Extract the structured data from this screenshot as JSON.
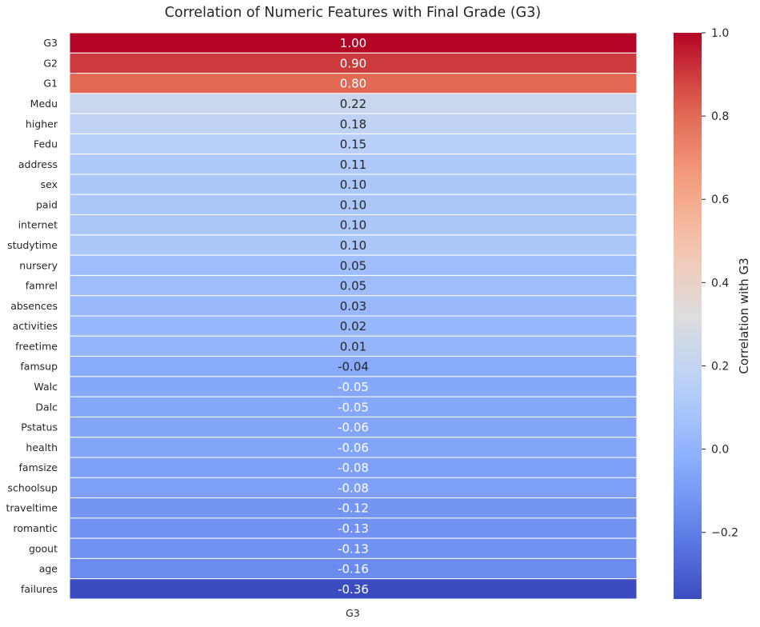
{
  "title": "Correlation of Numeric Features with Final Grade (G3)",
  "chart_data": {
    "type": "heatmap",
    "title": "Correlation of Numeric Features with Final Grade (G3)",
    "columns": [
      "G3"
    ],
    "rows": [
      "G3",
      "G2",
      "G1",
      "Medu",
      "higher",
      "Fedu",
      "address",
      "sex",
      "paid",
      "internet",
      "studytime",
      "nursery",
      "famrel",
      "absences",
      "activities",
      "freetime",
      "famsup",
      "Walc",
      "Dalc",
      "Pstatus",
      "health",
      "famsize",
      "schoolsup",
      "traveltime",
      "romantic",
      "goout",
      "age",
      "failures"
    ],
    "values": [
      1.0,
      0.9,
      0.8,
      0.22,
      0.18,
      0.15,
      0.11,
      0.1,
      0.1,
      0.1,
      0.1,
      0.05,
      0.05,
      0.03,
      0.02,
      0.01,
      -0.04,
      -0.05,
      -0.05,
      -0.06,
      -0.06,
      -0.08,
      -0.08,
      -0.12,
      -0.13,
      -0.13,
      -0.16,
      -0.36
    ],
    "value_labels": [
      "1.00",
      "0.90",
      "0.80",
      "0.22",
      "0.18",
      "0.15",
      "0.11",
      "0.10",
      "0.10",
      "0.10",
      "0.10",
      "0.05",
      "0.05",
      "0.03",
      "0.02",
      "0.01",
      "-0.04",
      "-0.05",
      "-0.05",
      "-0.06",
      "-0.06",
      "-0.08",
      "-0.08",
      "-0.12",
      "-0.13",
      "-0.13",
      "-0.16",
      "-0.36"
    ],
    "colormap": "coolwarm",
    "colorbar": {
      "label": "Correlation with G3",
      "vmin": -0.36,
      "vmax": 1.0,
      "ticks": [
        -0.2,
        0.0,
        0.2,
        0.4,
        0.6,
        0.8,
        1.0
      ],
      "tick_labels": [
        "−0.2",
        "0.0",
        "0.2",
        "0.4",
        "0.6",
        "0.8",
        "1.0"
      ]
    }
  }
}
